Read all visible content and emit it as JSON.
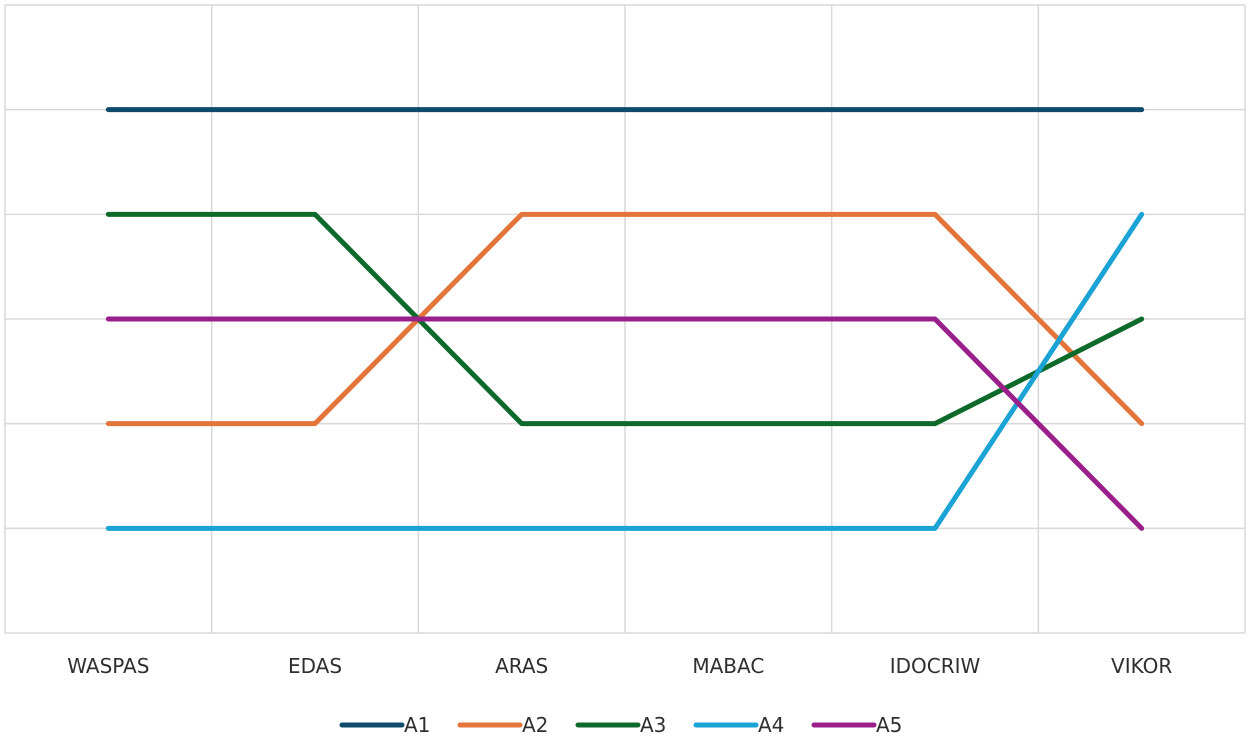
{
  "chart_data": {
    "type": "line",
    "categories": [
      "WASPAS",
      "EDAS",
      "ARAS",
      "MABAC",
      "IDOCRIW",
      "VIKOR"
    ],
    "ylim": [
      0,
      6
    ],
    "y_reversed": true,
    "grid": true,
    "legend_position": "bottom",
    "series": [
      {
        "name": "A1",
        "color": "#0d4a6b",
        "values": [
          1,
          1,
          1,
          1,
          1,
          1
        ]
      },
      {
        "name": "A2",
        "color": "#e3743a",
        "values": [
          4,
          4,
          2,
          2,
          2,
          4
        ]
      },
      {
        "name": "A3",
        "color": "#0e6a2b",
        "values": [
          2,
          2,
          4,
          4,
          4,
          3
        ]
      },
      {
        "name": "A4",
        "color": "#1aa3d4",
        "values": [
          5,
          5,
          5,
          5,
          5,
          2
        ]
      },
      {
        "name": "A5",
        "color": "#9a1f8a",
        "values": [
          3,
          3,
          3,
          3,
          3,
          5
        ]
      }
    ]
  }
}
